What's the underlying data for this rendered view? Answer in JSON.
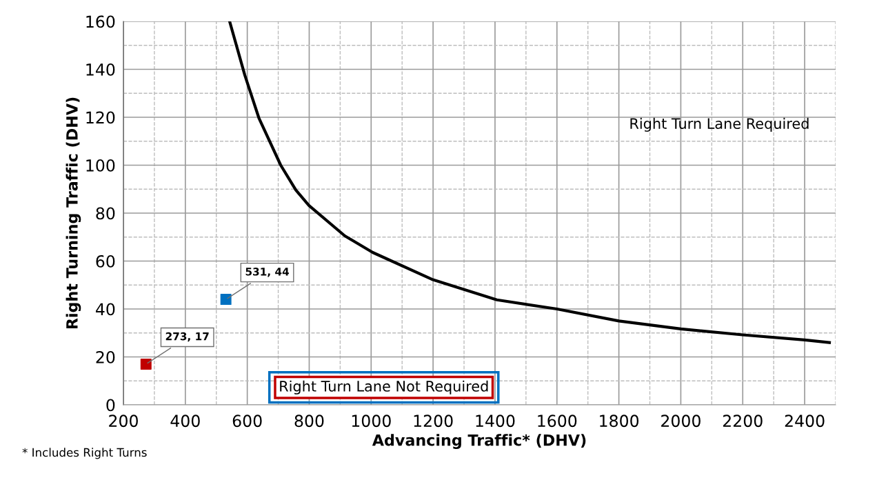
{
  "chart_data": {
    "type": "line",
    "xlabel": "Advancing Traffic* (DHV)",
    "ylabel": "Right Turning Traffic (DHV)",
    "xlim": [
      200,
      2500
    ],
    "ylim": [
      0,
      160
    ],
    "xticks": [
      200,
      400,
      600,
      800,
      1000,
      1200,
      1400,
      1600,
      1800,
      2000,
      2200,
      2400
    ],
    "yticks": [
      0,
      20,
      40,
      60,
      80,
      100,
      120,
      140,
      160
    ],
    "grid": true,
    "series": [
      {
        "color": "#000000",
        "marker": "none",
        "line_style": "solid",
        "x": [
          543,
          592,
          638,
          708,
          757,
          799,
          915,
          1005,
          1196,
          1406,
          1600,
          1800,
          2000,
          2200,
          2400,
          2480
        ],
        "values": [
          160,
          137.6,
          119.5,
          100,
          89.6,
          83.2,
          70.5,
          63.6,
          52.4,
          43.8,
          40,
          35,
          31.7,
          29.2,
          27.1,
          26
        ]
      },
      {
        "type": "scatter",
        "color": "#0070c0",
        "marker": "square",
        "x": [
          531
        ],
        "values": [
          44
        ],
        "value_labels": [
          "531, 44"
        ]
      },
      {
        "type": "scatter",
        "color": "#c00000",
        "marker": "square",
        "x": [
          273
        ],
        "values": [
          17
        ],
        "value_labels": [
          "273, 17"
        ]
      }
    ],
    "annotations": [
      "Right Turn Lane Required",
      "Right Turn Lane Not Required",
      "* Includes Right Turns"
    ]
  }
}
